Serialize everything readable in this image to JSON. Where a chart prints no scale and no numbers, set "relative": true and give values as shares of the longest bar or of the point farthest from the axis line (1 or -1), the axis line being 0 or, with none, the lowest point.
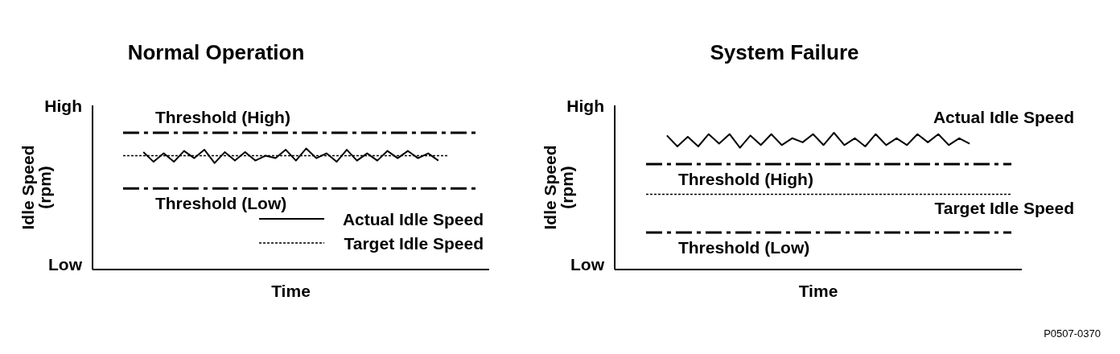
{
  "chart_data": [
    {
      "type": "line",
      "title": "Normal Operation",
      "xlabel": "Time",
      "ylabel": "Idle Speed (rpm)",
      "relative": true,
      "categories": [
        null,
        null,
        null,
        null,
        null,
        null,
        null,
        null,
        null,
        null,
        null,
        null,
        null,
        null,
        null,
        null,
        null,
        null,
        null,
        null,
        null,
        null,
        null,
        null,
        null,
        null,
        null,
        null,
        null,
        null,
        null,
        null,
        null,
        null,
        null,
        null
      ],
      "series": [
        {
          "name": "Actual Idle Speed",
          "color": "#000000",
          "line_style": "solid",
          "values": [
            null,
            null,
            0.97,
            0.89,
            0.96,
            0.89,
            0.98,
            0.92,
            0.99,
            0.88,
            0.97,
            0.9,
            0.97,
            0.9,
            0.94,
            0.92,
            0.99,
            0.9,
            1,
            0.92,
            0.96,
            0.89,
            0.99,
            0.9,
            0.96,
            0.9,
            0.98,
            0.92,
            0.98,
            0.92,
            0.96,
            0.9,
            null,
            null,
            null,
            null
          ]
        },
        {
          "name": "Target Idle Speed",
          "color": "#000000",
          "line_style": "dotted",
          "values": [
            0.94,
            0.94,
            0.94,
            0.94,
            0.94,
            0.94,
            0.94,
            0.94,
            0.94,
            0.94,
            0.94,
            0.94,
            0.94,
            0.94,
            0.94,
            0.94,
            0.94,
            0.94,
            0.94,
            0.94,
            0.94,
            0.94,
            0.94,
            0.94,
            0.94,
            0.94,
            0.94,
            0.94,
            0.94,
            0.94,
            0.94,
            0.94,
            0.94,
            null,
            null,
            null
          ]
        }
      ],
      "ref_lines": [
        {
          "axis": "y",
          "value": 1.13,
          "label": "Threshold (High)",
          "color": "#000000",
          "line_style": "dashdot"
        },
        {
          "axis": "y",
          "value": 0.67,
          "label": "Threshold (Low)",
          "color": "#000000",
          "line_style": "dashdot"
        }
      ],
      "legend": "bottom right",
      "marker": "none",
      "annotations": [
        "High",
        "Low"
      ]
    },
    {
      "type": "line",
      "title": "System Failure",
      "xlabel": "Time",
      "ylabel": "Idle Speed (rpm)",
      "relative": true,
      "categories": [
        null,
        null,
        null,
        null,
        null,
        null,
        null,
        null,
        null,
        null,
        null,
        null,
        null,
        null,
        null,
        null,
        null,
        null,
        null,
        null,
        null,
        null,
        null,
        null,
        null,
        null,
        null,
        null,
        null,
        null,
        null,
        null,
        null,
        null,
        null,
        null
      ],
      "series": [
        {
          "name": "Actual Idle Speed",
          "color": "#000000",
          "line_style": "solid",
          "values": [
            null,
            null,
            0.98,
            0.9,
            0.97,
            0.9,
            0.99,
            0.92,
            0.99,
            0.89,
            0.98,
            0.91,
            0.99,
            0.91,
            0.96,
            0.93,
            0.99,
            0.91,
            1,
            0.91,
            0.96,
            0.9,
            0.99,
            0.91,
            0.96,
            0.91,
            0.99,
            0.93,
            0.99,
            0.91,
            0.96,
            0.92,
            null,
            null,
            null,
            null
          ]
        },
        {
          "name": "Target Idle Speed",
          "color": "#000000",
          "line_style": "dotted",
          "values": [
            0.55,
            0.55,
            0.55,
            0.55,
            0.55,
            0.55,
            0.55,
            0.55,
            0.55,
            0.55,
            0.55,
            0.55,
            0.55,
            0.55,
            0.55,
            0.55,
            0.55,
            0.55,
            0.55,
            0.55,
            0.55,
            0.55,
            0.55,
            0.55,
            0.55,
            0.55,
            0.55,
            0.55,
            0.55,
            0.55,
            0.55,
            0.55,
            0.55,
            0.55,
            0.55,
            0.55
          ]
        }
      ],
      "ref_lines": [
        {
          "axis": "y",
          "value": 0.77,
          "label": "Threshold (High)",
          "color": "#000000",
          "line_style": "dashdot"
        },
        {
          "axis": "y",
          "value": 0.27,
          "label": "Threshold (Low)",
          "color": "#000000",
          "line_style": "dashdot"
        }
      ],
      "legend": false,
      "marker": "none",
      "annotations": [
        "High",
        "Low",
        "P0507-0370"
      ]
    }
  ]
}
